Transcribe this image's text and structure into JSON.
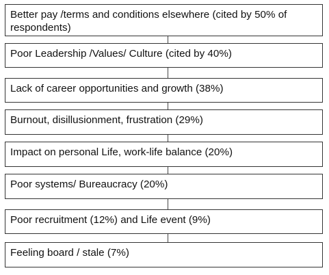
{
  "boxes": [
    "Better pay /terms and conditions elsewhere (cited by 50% of respondents)",
    "Poor Leadership /Values/ Culture (cited by 40%)",
    "Lack of career opportunities and growth (38%)",
    "Burnout, disillusionment, frustration (29%)",
    "Impact on personal Life, work-life balance (20%)",
    "Poor systems/ Bureaucracy (20%)",
    "Poor recruitment (12%) and Life event (9%)",
    "Feeling board / stale (7%)"
  ]
}
